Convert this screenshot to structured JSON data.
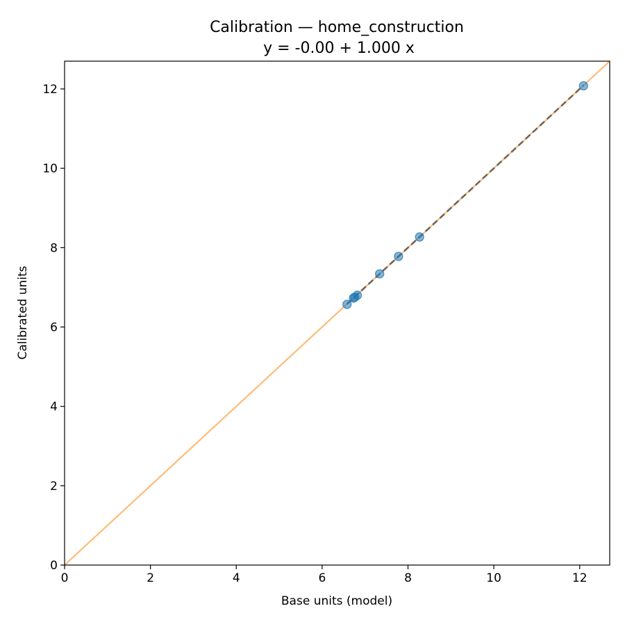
{
  "chart_data": {
    "type": "scatter",
    "title": "Calibration — home_construction",
    "subtitle": "y = -0.00 + 1.000 x",
    "xlabel": "Base units (model)",
    "ylabel": "Calibrated units",
    "xlim": [
      0,
      12.7
    ],
    "ylim": [
      0,
      12.7
    ],
    "xticks": [
      0,
      2,
      4,
      6,
      8,
      10,
      12
    ],
    "yticks": [
      0,
      2,
      4,
      6,
      8,
      10,
      12
    ],
    "grid": false,
    "legend": "none",
    "points": [
      {
        "x": 6.58,
        "y": 6.57
      },
      {
        "x": 6.73,
        "y": 6.73
      },
      {
        "x": 6.76,
        "y": 6.75
      },
      {
        "x": 6.82,
        "y": 6.8
      },
      {
        "x": 7.34,
        "y": 7.34
      },
      {
        "x": 7.78,
        "y": 7.78
      },
      {
        "x": 8.27,
        "y": 8.27
      },
      {
        "x": 12.09,
        "y": 12.08
      }
    ],
    "identity_line": {
      "x": [
        0,
        12.7
      ],
      "y": [
        0,
        12.7
      ]
    },
    "fit_line": {
      "intercept": -0.0,
      "slope": 1.0,
      "x_range": [
        6.58,
        12.09
      ]
    },
    "colors": {
      "points": "#1f77b4",
      "identity_line": "#ffbb78",
      "fit_line": "#555555",
      "axes": "#000000"
    }
  }
}
